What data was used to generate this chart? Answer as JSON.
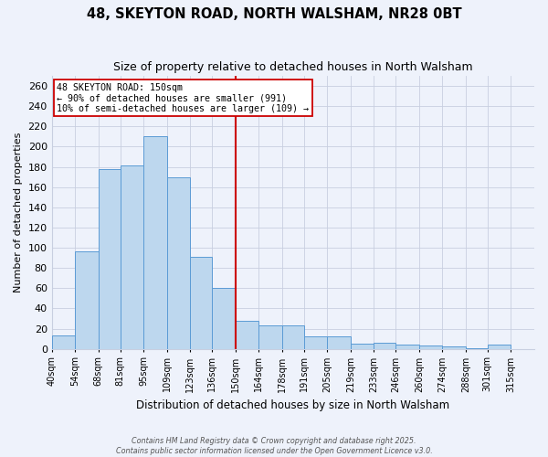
{
  "title": "48, SKEYTON ROAD, NORTH WALSHAM, NR28 0BT",
  "subtitle": "Size of property relative to detached houses in North Walsham",
  "xlabel": "Distribution of detached houses by size in North Walsham",
  "ylabel": "Number of detached properties",
  "bin_labels": [
    "40sqm",
    "54sqm",
    "68sqm",
    "81sqm",
    "95sqm",
    "109sqm",
    "123sqm",
    "136sqm",
    "150sqm",
    "164sqm",
    "178sqm",
    "191sqm",
    "205sqm",
    "219sqm",
    "233sqm",
    "246sqm",
    "260sqm",
    "274sqm",
    "288sqm",
    "301sqm",
    "315sqm"
  ],
  "bin_edges": [
    40,
    54,
    68,
    81,
    95,
    109,
    123,
    136,
    150,
    164,
    178,
    191,
    205,
    219,
    233,
    246,
    260,
    274,
    288,
    301,
    315,
    329
  ],
  "bar_heights": [
    13,
    96,
    178,
    181,
    210,
    170,
    91,
    60,
    28,
    23,
    23,
    12,
    12,
    5,
    6,
    4,
    3,
    2,
    1,
    4,
    0
  ],
  "bar_color": "#bdd7ee",
  "bar_edge_color": "#5b9bd5",
  "vline_x": 150,
  "vline_color": "#cc0000",
  "annotation_line1": "48 SKEYTON ROAD: 150sqm",
  "annotation_line2": "← 90% of detached houses are smaller (991)",
  "annotation_line3": "10% of semi-detached houses are larger (109) →",
  "annotation_box_color": "#ffffff",
  "annotation_box_edge": "#cc0000",
  "ylim": [
    0,
    270
  ],
  "yticks": [
    0,
    20,
    40,
    60,
    80,
    100,
    120,
    140,
    160,
    180,
    200,
    220,
    240,
    260
  ],
  "xlim_left": 40,
  "xlim_right": 329,
  "bg_color": "#eef2fb",
  "grid_color": "#c8cfe0",
  "footnote1": "Contains HM Land Registry data © Crown copyright and database right 2025.",
  "footnote2": "Contains public sector information licensed under the Open Government Licence v3.0."
}
